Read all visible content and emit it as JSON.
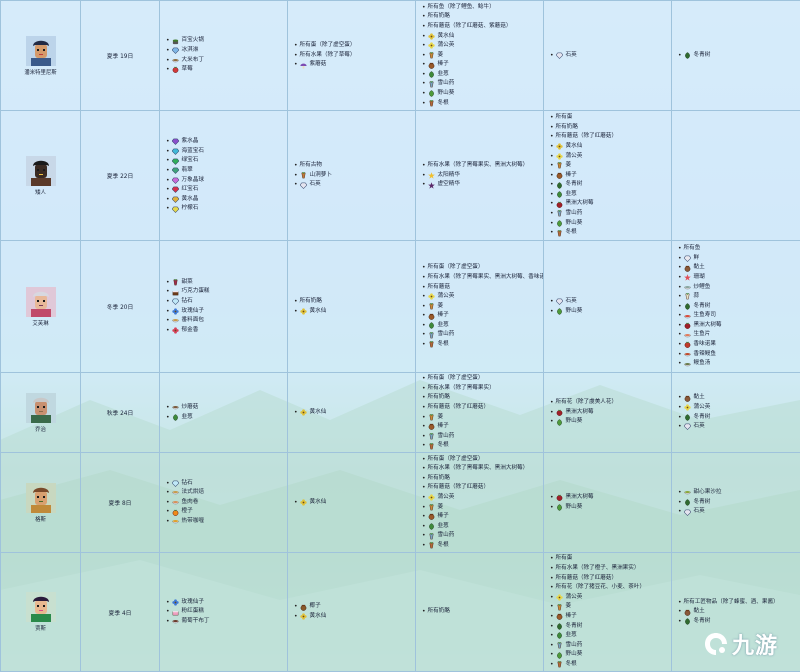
{
  "colors": {
    "border": "#9fc3dc",
    "text": "#1a2238",
    "bg_top": "#d6ecfb",
    "bg_bottom": "#c4e6df"
  },
  "rows": [
    {
      "name": "潘米特里尼斯",
      "birthday": "夏季 19日",
      "col2": [
        {
          "t": "百宝火锅",
          "icon": "pot",
          "c": "#3f7a2e"
        },
        {
          "t": "冰淇淋",
          "icon": "gem",
          "c": "#7fb7e6"
        },
        {
          "t": "大米布丁",
          "icon": "bowl",
          "c": "#8c6d3f"
        },
        {
          "t": "草莓",
          "icon": "berry",
          "c": "#d13a3a"
        }
      ],
      "col3": [
        {
          "t": "所有蛋（除了虚空蛋）",
          "icon": ""
        },
        {
          "t": "所有水果（除了草莓）",
          "icon": ""
        },
        {
          "t": "紫蘑菇",
          "icon": "mushroom",
          "c": "#7b4bb3"
        }
      ],
      "col4": [
        {
          "t": "所有鱼（除了鲤鱼、鲶牛）",
          "icon": ""
        },
        {
          "t": "所有奶酪",
          "icon": ""
        },
        {
          "t": "所有蘑菇（除了红蘑菇、紫蘑菇）",
          "icon": ""
        },
        {
          "t": "黄水仙",
          "icon": "flower",
          "c": "#e0c23a"
        },
        {
          "t": "蒲公英",
          "icon": "flower",
          "c": "#e7d64a"
        },
        {
          "t": "姜",
          "icon": "root",
          "c": "#c98b3a"
        },
        {
          "t": "榛子",
          "icon": "nut",
          "c": "#9a5a2a"
        },
        {
          "t": "韭葱",
          "icon": "leaf",
          "c": "#3e8a3a"
        },
        {
          "t": "雪山药",
          "icon": "root",
          "c": "#7aa6c4"
        },
        {
          "t": "野山葵",
          "icon": "leaf",
          "c": "#4e9a3a"
        },
        {
          "t": "冬根",
          "icon": "root",
          "c": "#b56a3a"
        }
      ],
      "col5": [
        {
          "t": "石英",
          "icon": "gem",
          "c": "#e4e4ef"
        }
      ],
      "col6": [
        {
          "t": "冬青树",
          "icon": "leaf",
          "c": "#2f6a2f"
        }
      ]
    },
    {
      "name": "矮人",
      "birthday": "夏季 22日",
      "col2": [
        {
          "t": "紫水晶",
          "icon": "gem",
          "c": "#8a4fcc"
        },
        {
          "t": "海蓝宝石",
          "icon": "gem",
          "c": "#3fb8d8"
        },
        {
          "t": "绿宝石",
          "icon": "gem",
          "c": "#2fae5a"
        },
        {
          "t": "翡翠",
          "icon": "gem",
          "c": "#3fa37a"
        },
        {
          "t": "万象晶球",
          "icon": "gem",
          "c": "#c96ad8"
        },
        {
          "t": "红宝石",
          "icon": "gem",
          "c": "#d8304a"
        },
        {
          "t": "黄水晶",
          "icon": "gem",
          "c": "#e0b23a"
        },
        {
          "t": "柠檬石",
          "icon": "gem",
          "c": "#e6d84a"
        }
      ],
      "col3": [
        {
          "t": "所有古物",
          "icon": ""
        },
        {
          "t": "山洞萝卜",
          "icon": "root",
          "c": "#c47a3a"
        },
        {
          "t": "石英",
          "icon": "gem",
          "c": "#e4e4ef"
        }
      ],
      "col4": [
        {
          "t": "所有水果（除了黑莓果实、黑洲大树莓）",
          "icon": ""
        },
        {
          "t": "太阳精华",
          "icon": "star",
          "c": "#f0c030"
        },
        {
          "t": "虚空精华",
          "icon": "star",
          "c": "#5a2a6a"
        }
      ],
      "col5": [
        {
          "t": "所有蛋",
          "icon": ""
        },
        {
          "t": "所有奶酪",
          "icon": ""
        },
        {
          "t": "所有蘑菇（除了红蘑菇）",
          "icon": ""
        },
        {
          "t": "黄水仙",
          "icon": "flower",
          "c": "#e0c23a"
        },
        {
          "t": "蒲公英",
          "icon": "flower",
          "c": "#e7d64a"
        },
        {
          "t": "姜",
          "icon": "root",
          "c": "#c98b3a"
        },
        {
          "t": "榛子",
          "icon": "nut",
          "c": "#9a5a2a"
        },
        {
          "t": "冬青树",
          "icon": "leaf",
          "c": "#2f6a2f"
        },
        {
          "t": "韭葱",
          "icon": "leaf",
          "c": "#3e8a3a"
        },
        {
          "t": "黑洲大树莓",
          "icon": "berry",
          "c": "#a0202a"
        },
        {
          "t": "雪山药",
          "icon": "root",
          "c": "#7aa6c4"
        },
        {
          "t": "野山葵",
          "icon": "leaf",
          "c": "#4e9a3a"
        },
        {
          "t": "冬根",
          "icon": "root",
          "c": "#b56a3a"
        }
      ],
      "col6": []
    },
    {
      "name": "艾芙琳",
      "birthday": "冬季 20日",
      "col2": [
        {
          "t": "甜菜",
          "icon": "root",
          "c": "#a02a4a"
        },
        {
          "t": "巧克力蛋糕",
          "icon": "cake",
          "c": "#6a3a1a"
        },
        {
          "t": "钻石",
          "icon": "gem",
          "c": "#bfe8f8"
        },
        {
          "t": "玫瑰仙子",
          "icon": "flower",
          "c": "#3e7ad8"
        },
        {
          "t": "番料面包",
          "icon": "bowl",
          "c": "#c89a4a"
        },
        {
          "t": "郁金香",
          "icon": "flower",
          "c": "#d8405a"
        }
      ],
      "col3": [
        {
          "t": "所有奶酪",
          "icon": ""
        },
        {
          "t": "黄水仙",
          "icon": "flower",
          "c": "#e0c23a"
        }
      ],
      "col4": [
        {
          "t": "所有蛋（除了虚空蛋）",
          "icon": ""
        },
        {
          "t": "所有水果（除了黑莓果实、黑洲大树莓、香味诺莓）",
          "icon": ""
        },
        {
          "t": "所有蘑菇",
          "icon": ""
        },
        {
          "t": "蒲公英",
          "icon": "flower",
          "c": "#e7d64a"
        },
        {
          "t": "姜",
          "icon": "root",
          "c": "#c98b3a"
        },
        {
          "t": "榛子",
          "icon": "nut",
          "c": "#9a5a2a"
        },
        {
          "t": "韭葱",
          "icon": "leaf",
          "c": "#3e8a3a"
        },
        {
          "t": "雪山药",
          "icon": "root",
          "c": "#7aa6c4"
        },
        {
          "t": "冬根",
          "icon": "root",
          "c": "#b56a3a"
        }
      ],
      "col5": [
        {
          "t": "石英",
          "icon": "gem",
          "c": "#e4e4ef"
        },
        {
          "t": "野山葵",
          "icon": "leaf",
          "c": "#4e9a3a"
        }
      ],
      "col6": [
        {
          "t": "所有鱼",
          "icon": ""
        },
        {
          "t": "鲜",
          "icon": "gem",
          "c": "#e8e8ee"
        },
        {
          "t": "黏土",
          "icon": "nut",
          "c": "#8a5a3a"
        },
        {
          "t": "珊瑚",
          "icon": "star",
          "c": "#e0505a"
        },
        {
          "t": "炒鲤鱼",
          "icon": "bowl",
          "c": "#8aa6a0"
        },
        {
          "t": "蒜",
          "icon": "root",
          "c": "#e8e0c8"
        },
        {
          "t": "冬青树",
          "icon": "leaf",
          "c": "#2f6a2f"
        },
        {
          "t": "生鱼寿司",
          "icon": "bowl",
          "c": "#d84a3a"
        },
        {
          "t": "黑洲大树莓",
          "icon": "berry",
          "c": "#a0202a"
        },
        {
          "t": "生鱼片",
          "icon": "bowl",
          "c": "#e07a5a"
        },
        {
          "t": "香味诺果",
          "icon": "berry",
          "c": "#c03a2a"
        },
        {
          "t": "香辣鳗鱼",
          "icon": "bowl",
          "c": "#c04a2a"
        },
        {
          "t": "鳗鱼汤",
          "icon": "bowl",
          "c": "#6a7a4a"
        }
      ]
    },
    {
      "name": "乔治",
      "birthday": "秋季 24日",
      "col2": [
        {
          "t": "炒蘑菇",
          "icon": "bowl",
          "c": "#7a5a3a"
        },
        {
          "t": "韭葱",
          "icon": "leaf",
          "c": "#3e8a3a"
        }
      ],
      "col3": [
        {
          "t": "黄水仙",
          "icon": "flower",
          "c": "#e0c23a"
        }
      ],
      "col4": [
        {
          "t": "所有蛋（除了虚空蛋）",
          "icon": ""
        },
        {
          "t": "所有水果（除了黑莓果实）",
          "icon": ""
        },
        {
          "t": "所有奶酪",
          "icon": ""
        },
        {
          "t": "所有蘑菇（除了红蘑菇）",
          "icon": ""
        },
        {
          "t": "姜",
          "icon": "root",
          "c": "#c98b3a"
        },
        {
          "t": "榛子",
          "icon": "nut",
          "c": "#9a5a2a"
        },
        {
          "t": "雪山药",
          "icon": "root",
          "c": "#7aa6c4"
        },
        {
          "t": "冬根",
          "icon": "root",
          "c": "#b56a3a"
        }
      ],
      "col5": [
        {
          "t": "所有花（除了虞美人花）",
          "icon": ""
        },
        {
          "t": "黑洲大树莓",
          "icon": "berry",
          "c": "#a0202a"
        },
        {
          "t": "野山葵",
          "icon": "leaf",
          "c": "#4e9a3a"
        }
      ],
      "col6": [
        {
          "t": "黏土",
          "icon": "nut",
          "c": "#8a5a3a"
        },
        {
          "t": "蒲公英",
          "icon": "flower",
          "c": "#e7d64a"
        },
        {
          "t": "冬青树",
          "icon": "leaf",
          "c": "#2f6a2f"
        },
        {
          "t": "石英",
          "icon": "gem",
          "c": "#e4e4ef"
        }
      ]
    },
    {
      "name": "格斯",
      "birthday": "夏季 8日",
      "col2": [
        {
          "t": "钻石",
          "icon": "gem",
          "c": "#bfe8f8"
        },
        {
          "t": "法式烘焙",
          "icon": "bowl",
          "c": "#c89a4a"
        },
        {
          "t": "鱼肉卷",
          "icon": "bowl",
          "c": "#d8905a"
        },
        {
          "t": "橙子",
          "icon": "berry",
          "c": "#f08a1a"
        },
        {
          "t": "热带咖喱",
          "icon": "bowl",
          "c": "#e0a02a"
        }
      ],
      "col3": [
        {
          "t": "黄水仙",
          "icon": "flower",
          "c": "#e0c23a"
        }
      ],
      "col4": [
        {
          "t": "所有蛋（除了虚空蛋）",
          "icon": ""
        },
        {
          "t": "所有水果（除了黑莓果实、黑洲大树莓）",
          "icon": ""
        },
        {
          "t": "所有奶酪",
          "icon": ""
        },
        {
          "t": "所有蘑菇（除了红蘑菇）",
          "icon": ""
        },
        {
          "t": "蒲公英",
          "icon": "flower",
          "c": "#e7d64a"
        },
        {
          "t": "姜",
          "icon": "root",
          "c": "#c98b3a"
        },
        {
          "t": "榛子",
          "icon": "nut",
          "c": "#9a5a2a"
        },
        {
          "t": "韭葱",
          "icon": "leaf",
          "c": "#3e8a3a"
        },
        {
          "t": "雪山药",
          "icon": "root",
          "c": "#7aa6c4"
        },
        {
          "t": "冬根",
          "icon": "root",
          "c": "#b56a3a"
        }
      ],
      "col5": [
        {
          "t": "黑洲大树莓",
          "icon": "berry",
          "c": "#a0202a"
        },
        {
          "t": "野山葵",
          "icon": "leaf",
          "c": "#4e9a3a"
        }
      ],
      "col6": [
        {
          "t": "甜心果沙拉",
          "icon": "bowl",
          "c": "#8aa63a"
        },
        {
          "t": "冬青树",
          "icon": "leaf",
          "c": "#2f6a2f"
        },
        {
          "t": "石英",
          "icon": "gem",
          "c": "#e4e4ef"
        }
      ]
    },
    {
      "name": "贾斯",
      "birthday": "夏季 4日",
      "col2": [
        {
          "t": "玫瑰仙子",
          "icon": "flower",
          "c": "#3e7ad8"
        },
        {
          "t": "粉红蛋糕",
          "icon": "cake",
          "c": "#f0a0c0"
        },
        {
          "t": "葡萄干布丁",
          "icon": "bowl",
          "c": "#6a3a2a"
        }
      ],
      "col3": [
        {
          "t": "椰子",
          "icon": "nut",
          "c": "#8a5a2a"
        },
        {
          "t": "黄水仙",
          "icon": "flower",
          "c": "#e0c23a"
        }
      ],
      "col4": [
        {
          "t": "所有奶酪",
          "icon": ""
        }
      ],
      "col5": [
        {
          "t": "所有蛋",
          "icon": ""
        },
        {
          "t": "所有水果（除了橙子、黑洲果实）",
          "icon": ""
        },
        {
          "t": "所有蘑菇（除了红蘑菇）",
          "icon": ""
        },
        {
          "t": "所有花（除了猪豆花、小麦、茶叶）",
          "icon": ""
        },
        {
          "t": "蒲公英",
          "icon": "flower",
          "c": "#e7d64a"
        },
        {
          "t": "姜",
          "icon": "root",
          "c": "#c98b3a"
        },
        {
          "t": "榛子",
          "icon": "nut",
          "c": "#9a5a2a"
        },
        {
          "t": "冬青树",
          "icon": "leaf",
          "c": "#2f6a2f"
        },
        {
          "t": "韭葱",
          "icon": "leaf",
          "c": "#3e8a3a"
        },
        {
          "t": "雪山药",
          "icon": "root",
          "c": "#7aa6c4"
        },
        {
          "t": "野山葵",
          "icon": "leaf",
          "c": "#4e9a3a"
        },
        {
          "t": "冬根",
          "icon": "root",
          "c": "#b56a3a"
        }
      ],
      "col6": [
        {
          "t": "所有工匠物品（除了蜂蜜、酒、果酱）",
          "icon": ""
        },
        {
          "t": "黏土",
          "icon": "nut",
          "c": "#8a5a3a"
        },
        {
          "t": "冬青树",
          "icon": "leaf",
          "c": "#2f6a2f"
        }
      ]
    }
  ],
  "logo": {
    "text": "九游",
    "icon": "jiuyou-logo-icon"
  }
}
